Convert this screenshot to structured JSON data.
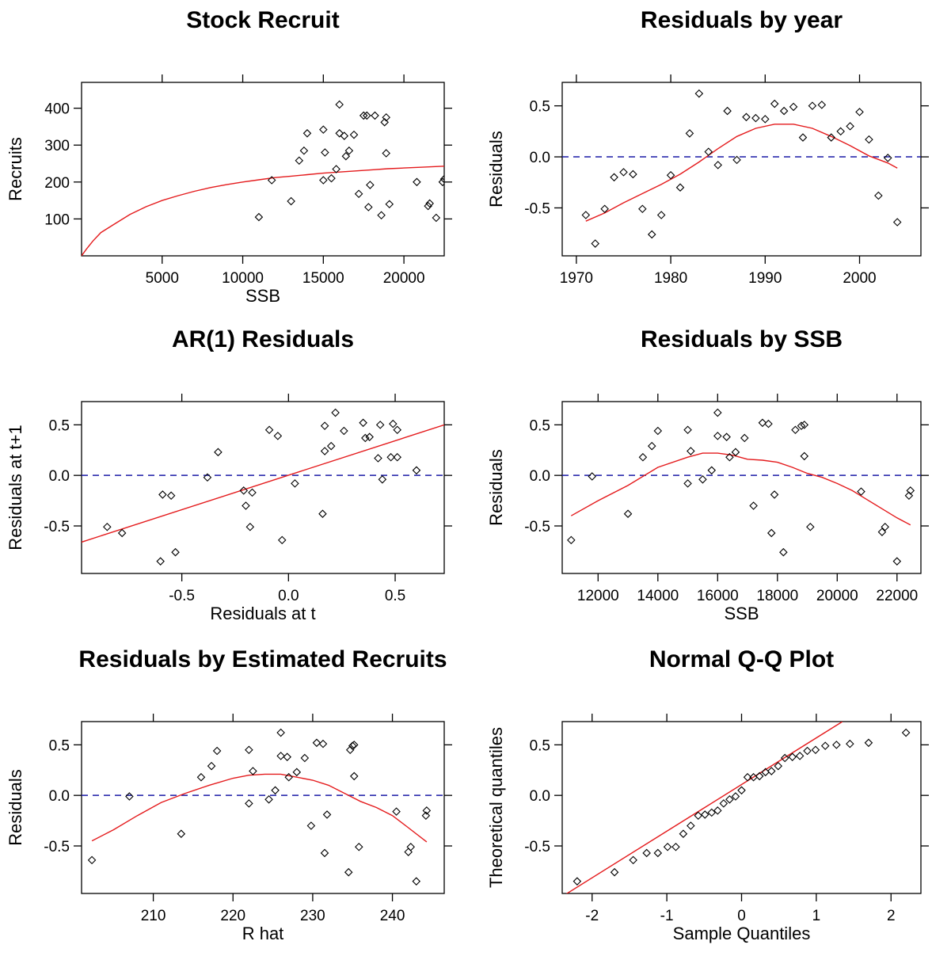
{
  "colors": {
    "fit_line": "#e41a1c",
    "ref_line": "#1a1aa6",
    "points": "#000000",
    "axes": "#000000"
  },
  "chart_data": [
    {
      "type": "scatter",
      "title": "Stock Recruit",
      "xlabel": "SSB",
      "ylabel": "Recruits",
      "xlim": [
        0,
        22500
      ],
      "ylim": [
        0,
        470
      ],
      "xticks": [
        5000,
        10000,
        15000,
        20000
      ],
      "xtick_labels": [
        "5000",
        "10000",
        "15000",
        "20000"
      ],
      "yticks": [
        100,
        200,
        300,
        400
      ],
      "ytick_labels": [
        "100",
        "200",
        "300",
        "400"
      ],
      "points": [
        [
          11000,
          105
        ],
        [
          11800,
          205
        ],
        [
          13000,
          148
        ],
        [
          13500,
          258
        ],
        [
          13800,
          285
        ],
        [
          14000,
          332
        ],
        [
          15000,
          342
        ],
        [
          15100,
          280
        ],
        [
          15000,
          205
        ],
        [
          15500,
          210
        ],
        [
          15800,
          235
        ],
        [
          16000,
          410
        ],
        [
          16000,
          332
        ],
        [
          16300,
          325
        ],
        [
          16400,
          270
        ],
        [
          16600,
          285
        ],
        [
          16900,
          328
        ],
        [
          17200,
          168
        ],
        [
          17500,
          380
        ],
        [
          17700,
          380
        ],
        [
          17800,
          132
        ],
        [
          17900,
          192
        ],
        [
          18200,
          380
        ],
        [
          18600,
          110
        ],
        [
          18800,
          362
        ],
        [
          18900,
          375
        ],
        [
          18900,
          278
        ],
        [
          19100,
          140
        ],
        [
          20800,
          200
        ],
        [
          21500,
          135
        ],
        [
          21600,
          142
        ],
        [
          22000,
          103
        ],
        [
          22400,
          200
        ],
        [
          22500,
          208
        ]
      ],
      "fit_line": [
        [
          0,
          0
        ],
        [
          300,
          18
        ],
        [
          700,
          40
        ],
        [
          1200,
          63
        ],
        [
          2000,
          85
        ],
        [
          3000,
          112
        ],
        [
          4000,
          133
        ],
        [
          5000,
          150
        ],
        [
          6000,
          163
        ],
        [
          7000,
          175
        ],
        [
          8000,
          185
        ],
        [
          9000,
          193
        ],
        [
          10000,
          200
        ],
        [
          11000,
          206
        ],
        [
          12000,
          212
        ],
        [
          13000,
          216
        ],
        [
          14000,
          220
        ],
        [
          15000,
          224
        ],
        [
          16000,
          227
        ],
        [
          17000,
          230
        ],
        [
          18000,
          233
        ],
        [
          19000,
          236
        ],
        [
          20000,
          238
        ],
        [
          21000,
          240
        ],
        [
          22500,
          243
        ]
      ],
      "ref_line": null
    },
    {
      "type": "scatter",
      "title": "Residuals by year",
      "xlabel": "",
      "ylabel": "Residuals",
      "xlim": [
        1968.5,
        2006.5
      ],
      "ylim": [
        -0.97,
        0.73
      ],
      "xticks": [
        1970,
        1980,
        1990,
        2000
      ],
      "xtick_labels": [
        "1970",
        "1980",
        "1990",
        "2000"
      ],
      "yticks": [
        -0.5,
        0.0,
        0.5
      ],
      "ytick_labels": [
        "-0.5",
        "0.0",
        "0.5"
      ],
      "points": [
        [
          1971,
          -0.57
        ],
        [
          1972,
          -0.85
        ],
        [
          1973,
          -0.51
        ],
        [
          1974,
          -0.2
        ],
        [
          1975,
          -0.15
        ],
        [
          1976,
          -0.17
        ],
        [
          1977,
          -0.51
        ],
        [
          1978,
          -0.76
        ],
        [
          1979,
          -0.57
        ],
        [
          1980,
          -0.18
        ],
        [
          1981,
          -0.3
        ],
        [
          1982,
          0.23
        ],
        [
          1983,
          0.62
        ],
        [
          1984,
          0.05
        ],
        [
          1985,
          -0.08
        ],
        [
          1986,
          0.45
        ],
        [
          1987,
          -0.03
        ],
        [
          1988,
          0.39
        ],
        [
          1989,
          0.38
        ],
        [
          1990,
          0.37
        ],
        [
          1991,
          0.52
        ],
        [
          1992,
          0.45
        ],
        [
          1993,
          0.49
        ],
        [
          1994,
          0.19
        ],
        [
          1995,
          0.5
        ],
        [
          1996,
          0.51
        ],
        [
          1997,
          0.19
        ],
        [
          1998,
          0.25
        ],
        [
          1999,
          0.3
        ],
        [
          2000,
          0.44
        ],
        [
          2001,
          0.17
        ],
        [
          2002,
          -0.38
        ],
        [
          2003,
          -0.01
        ],
        [
          2004,
          -0.64
        ]
      ],
      "fit_line": [
        [
          1971,
          -0.63
        ],
        [
          1973,
          -0.55
        ],
        [
          1975,
          -0.45
        ],
        [
          1977,
          -0.36
        ],
        [
          1979,
          -0.27
        ],
        [
          1981,
          -0.17
        ],
        [
          1983,
          -0.05
        ],
        [
          1985,
          0.08
        ],
        [
          1987,
          0.2
        ],
        [
          1989,
          0.28
        ],
        [
          1991,
          0.32
        ],
        [
          1993,
          0.32
        ],
        [
          1995,
          0.28
        ],
        [
          1997,
          0.2
        ],
        [
          1999,
          0.11
        ],
        [
          2001,
          0.01
        ],
        [
          2003,
          -0.06
        ],
        [
          2004,
          -0.11
        ]
      ],
      "ref_line": 0
    },
    {
      "type": "scatter",
      "title": "AR(1) Residuals",
      "xlabel": "Residuals at t",
      "ylabel": "Residuals at t+1",
      "xlim": [
        -0.97,
        0.73
      ],
      "ylim": [
        -0.97,
        0.73
      ],
      "xticks": [
        -0.5,
        0.0,
        0.5
      ],
      "xtick_labels": [
        "-0.5",
        "0.0",
        "0.5"
      ],
      "yticks": [
        -0.5,
        0.0,
        0.5
      ],
      "ytick_labels": [
        "-0.5",
        "0.0",
        "0.5"
      ],
      "points": [
        [
          -0.85,
          -0.51
        ],
        [
          -0.78,
          -0.57
        ],
        [
          -0.6,
          -0.85
        ],
        [
          -0.59,
          -0.19
        ],
        [
          -0.55,
          -0.2
        ],
        [
          -0.53,
          -0.76
        ],
        [
          -0.38,
          -0.02
        ],
        [
          -0.33,
          0.23
        ],
        [
          -0.21,
          -0.15
        ],
        [
          -0.2,
          -0.3
        ],
        [
          -0.18,
          -0.51
        ],
        [
          -0.17,
          -0.17
        ],
        [
          -0.09,
          0.45
        ],
        [
          -0.05,
          0.39
        ],
        [
          -0.03,
          -0.64
        ],
        [
          0.03,
          -0.08
        ],
        [
          0.16,
          -0.38
        ],
        [
          0.17,
          0.24
        ],
        [
          0.17,
          0.49
        ],
        [
          0.2,
          0.29
        ],
        [
          0.22,
          0.62
        ],
        [
          0.26,
          0.44
        ],
        [
          0.35,
          0.52
        ],
        [
          0.36,
          0.37
        ],
        [
          0.38,
          0.38
        ],
        [
          0.42,
          0.17
        ],
        [
          0.43,
          0.5
        ],
        [
          0.44,
          -0.04
        ],
        [
          0.48,
          0.18
        ],
        [
          0.49,
          0.51
        ],
        [
          0.51,
          0.45
        ],
        [
          0.51,
          0.18
        ],
        [
          0.6,
          0.05
        ]
      ],
      "fit_line": [
        [
          -0.97,
          -0.66
        ],
        [
          0.73,
          0.5
        ]
      ],
      "ref_line": 0
    },
    {
      "type": "scatter",
      "title": "Residuals by SSB",
      "xlabel": "SSB",
      "ylabel": "Residuals",
      "xlim": [
        10800,
        22800
      ],
      "ylim": [
        -0.97,
        0.73
      ],
      "xticks": [
        12000,
        14000,
        16000,
        18000,
        20000,
        22000
      ],
      "xtick_labels": [
        "12000",
        "14000",
        "16000",
        "18000",
        "20000",
        "22000"
      ],
      "yticks": [
        -0.5,
        0.0,
        0.5
      ],
      "ytick_labels": [
        "-0.5",
        "0.0",
        "0.5"
      ],
      "points": [
        [
          11100,
          -0.64
        ],
        [
          11800,
          -0.01
        ],
        [
          13000,
          -0.38
        ],
        [
          13500,
          0.18
        ],
        [
          13800,
          0.29
        ],
        [
          14000,
          0.44
        ],
        [
          15000,
          0.45
        ],
        [
          15000,
          -0.08
        ],
        [
          15100,
          0.24
        ],
        [
          15500,
          -0.04
        ],
        [
          15800,
          0.05
        ],
        [
          16000,
          0.39
        ],
        [
          16000,
          0.62
        ],
        [
          16300,
          0.38
        ],
        [
          16400,
          0.18
        ],
        [
          16600,
          0.23
        ],
        [
          16900,
          0.37
        ],
        [
          17200,
          -0.3
        ],
        [
          17500,
          0.52
        ],
        [
          17700,
          0.51
        ],
        [
          17800,
          -0.57
        ],
        [
          17900,
          -0.19
        ],
        [
          18200,
          -0.76
        ],
        [
          18600,
          0.45
        ],
        [
          18800,
          0.49
        ],
        [
          18900,
          0.5
        ],
        [
          18900,
          0.19
        ],
        [
          19100,
          -0.51
        ],
        [
          20800,
          -0.16
        ],
        [
          21500,
          -0.56
        ],
        [
          21600,
          -0.51
        ],
        [
          22000,
          -0.85
        ],
        [
          22400,
          -0.2
        ],
        [
          22450,
          -0.15
        ]
      ],
      "fit_line": [
        [
          11100,
          -0.4
        ],
        [
          12000,
          -0.25
        ],
        [
          13000,
          -0.1
        ],
        [
          14000,
          0.08
        ],
        [
          15000,
          0.18
        ],
        [
          15500,
          0.22
        ],
        [
          16000,
          0.22
        ],
        [
          16500,
          0.2
        ],
        [
          17000,
          0.16
        ],
        [
          17500,
          0.15
        ],
        [
          18000,
          0.13
        ],
        [
          18500,
          0.08
        ],
        [
          19000,
          0.02
        ],
        [
          19500,
          -0.02
        ],
        [
          20000,
          -0.08
        ],
        [
          20500,
          -0.15
        ],
        [
          21000,
          -0.24
        ],
        [
          21500,
          -0.33
        ],
        [
          22000,
          -0.42
        ],
        [
          22450,
          -0.49
        ]
      ],
      "ref_line": 0
    },
    {
      "type": "scatter",
      "title": "Residuals by Estimated Recruits",
      "xlabel": "R hat",
      "ylabel": "Residuals",
      "xlim": [
        201,
        246.5
      ],
      "ylim": [
        -0.97,
        0.73
      ],
      "xticks": [
        210,
        220,
        230,
        240
      ],
      "xtick_labels": [
        "210",
        "220",
        "230",
        "240"
      ],
      "yticks": [
        -0.5,
        0.0,
        0.5
      ],
      "ytick_labels": [
        "-0.5",
        "0.0",
        "0.5"
      ],
      "points": [
        [
          202.3,
          -0.64
        ],
        [
          207,
          -0.01
        ],
        [
          213.5,
          -0.38
        ],
        [
          216,
          0.18
        ],
        [
          217.3,
          0.29
        ],
        [
          218,
          0.44
        ],
        [
          222,
          0.45
        ],
        [
          222,
          -0.08
        ],
        [
          222.5,
          0.24
        ],
        [
          224.5,
          -0.04
        ],
        [
          225.3,
          0.05
        ],
        [
          226,
          0.39
        ],
        [
          226,
          0.62
        ],
        [
          226.8,
          0.38
        ],
        [
          227,
          0.18
        ],
        [
          228,
          0.23
        ],
        [
          229,
          0.37
        ],
        [
          229.8,
          -0.3
        ],
        [
          230.5,
          0.52
        ],
        [
          231.3,
          0.51
        ],
        [
          231.5,
          -0.57
        ],
        [
          231.8,
          -0.19
        ],
        [
          234.5,
          -0.76
        ],
        [
          234.7,
          0.45
        ],
        [
          235,
          0.49
        ],
        [
          235.2,
          0.5
        ],
        [
          235.2,
          0.19
        ],
        [
          235.8,
          -0.51
        ],
        [
          240.5,
          -0.16
        ],
        [
          242,
          -0.56
        ],
        [
          242.3,
          -0.51
        ],
        [
          243,
          -0.85
        ],
        [
          244.2,
          -0.2
        ],
        [
          244.3,
          -0.15
        ]
      ],
      "fit_line": [
        [
          202.3,
          -0.45
        ],
        [
          205,
          -0.34
        ],
        [
          208,
          -0.2
        ],
        [
          211,
          -0.07
        ],
        [
          214,
          0.02
        ],
        [
          217,
          0.1
        ],
        [
          220,
          0.17
        ],
        [
          222,
          0.2
        ],
        [
          224,
          0.21
        ],
        [
          226,
          0.21
        ],
        [
          228,
          0.18
        ],
        [
          230,
          0.15
        ],
        [
          232,
          0.1
        ],
        [
          234,
          0.02
        ],
        [
          236,
          -0.06
        ],
        [
          238,
          -0.12
        ],
        [
          240,
          -0.2
        ],
        [
          242,
          -0.32
        ],
        [
          244.3,
          -0.46
        ]
      ],
      "ref_line": 0
    },
    {
      "type": "scatter",
      "title": "Normal Q-Q Plot",
      "xlabel": "Sample Quantiles",
      "ylabel": "Theoretical quantiles",
      "xlim": [
        -2.4,
        2.4
      ],
      "ylim": [
        -0.97,
        0.73
      ],
      "xticks": [
        -2,
        -1,
        0,
        1,
        2
      ],
      "xtick_labels": [
        "-2",
        "-1",
        "0",
        "1",
        "2"
      ],
      "yticks": [
        -0.5,
        0.0,
        0.5
      ],
      "ytick_labels": [
        "-0.5",
        "0.0",
        "0.5"
      ],
      "points": [
        [
          -2.2,
          -0.85
        ],
        [
          -1.7,
          -0.76
        ],
        [
          -1.45,
          -0.64
        ],
        [
          -1.27,
          -0.57
        ],
        [
          -1.12,
          -0.57
        ],
        [
          -0.99,
          -0.51
        ],
        [
          -0.88,
          -0.51
        ],
        [
          -0.78,
          -0.38
        ],
        [
          -0.68,
          -0.3
        ],
        [
          -0.58,
          -0.2
        ],
        [
          -0.49,
          -0.19
        ],
        [
          -0.4,
          -0.17
        ],
        [
          -0.32,
          -0.15
        ],
        [
          -0.24,
          -0.08
        ],
        [
          -0.16,
          -0.04
        ],
        [
          -0.08,
          -0.01
        ],
        [
          0.0,
          0.05
        ],
        [
          0.08,
          0.18
        ],
        [
          0.16,
          0.18
        ],
        [
          0.24,
          0.19
        ],
        [
          0.32,
          0.23
        ],
        [
          0.4,
          0.24
        ],
        [
          0.49,
          0.29
        ],
        [
          0.58,
          0.37
        ],
        [
          0.68,
          0.38
        ],
        [
          0.78,
          0.39
        ],
        [
          0.88,
          0.44
        ],
        [
          0.99,
          0.45
        ],
        [
          1.12,
          0.49
        ],
        [
          1.27,
          0.5
        ],
        [
          1.45,
          0.51
        ],
        [
          1.7,
          0.52
        ],
        [
          2.2,
          0.62
        ]
      ],
      "fit_line": [
        [
          -2.4,
          -1.0
        ],
        [
          1.35,
          0.73
        ]
      ],
      "ref_line": null
    }
  ]
}
